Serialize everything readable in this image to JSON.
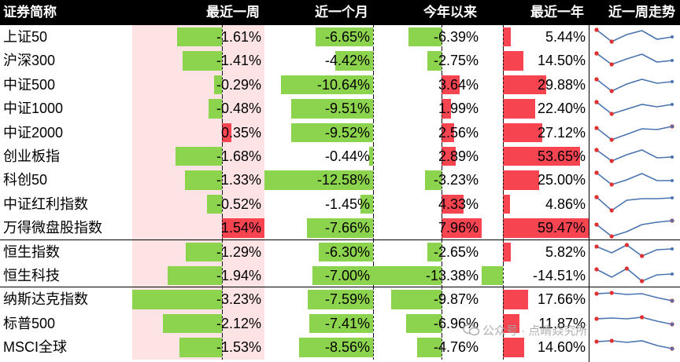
{
  "chart_data": {
    "type": "table",
    "title": "",
    "columns": [
      "证券简称",
      "最近一周",
      "近一个月",
      "今年以来",
      "最近一年",
      "近一周走势"
    ],
    "unit": "%",
    "colors": {
      "positive": "#f74451",
      "negative": "#8dd44e",
      "highlight": "#fde3e4",
      "line": "#4a74b0",
      "marker": "#e03030"
    },
    "rows": [
      {
        "name": "上证50",
        "week": "-1.61%",
        "month": "-6.65%",
        "ytd": "-6.39%",
        "year": "5.44%",
        "values": [
          -1.61,
          -6.65,
          -6.39,
          5.44
        ],
        "spark": [
          3.0,
          1.5,
          2.4,
          2.9,
          1.8,
          2.1
        ]
      },
      {
        "name": "沪深300",
        "week": "-1.41%",
        "month": "-4.42%",
        "ytd": "-2.75%",
        "year": "14.50%",
        "values": [
          -1.41,
          -4.42,
          -2.75,
          14.5
        ],
        "spark": [
          3.0,
          1.6,
          2.3,
          2.9,
          1.9,
          2.1
        ]
      },
      {
        "name": "中证500",
        "week": "-0.29%",
        "month": "-10.64%",
        "ytd": "3.64%",
        "year": "29.88%",
        "values": [
          -0.29,
          -10.64,
          3.64,
          29.88
        ],
        "spark": [
          2.8,
          1.3,
          2.2,
          2.8,
          2.3,
          2.5
        ]
      },
      {
        "name": "中证1000",
        "week": "-0.48%",
        "month": "-9.51%",
        "ytd": "1.99%",
        "year": "22.40%",
        "values": [
          -0.48,
          -9.51,
          1.99,
          22.4
        ],
        "spark": [
          2.9,
          1.4,
          2.0,
          2.6,
          2.3,
          2.6
        ]
      },
      {
        "name": "中证2000",
        "week": "0.35%",
        "month": "-9.52%",
        "ytd": "2.56%",
        "year": "27.12%",
        "values": [
          0.35,
          -9.52,
          2.56,
          27.12
        ],
        "spark": [
          2.7,
          1.2,
          1.9,
          2.6,
          2.5,
          2.9
        ]
      },
      {
        "name": "创业板指",
        "week": "-1.68%",
        "month": "-0.44%",
        "ytd": "2.89%",
        "year": "53.65%",
        "values": [
          -1.68,
          -0.44,
          2.89,
          53.65
        ],
        "spark": [
          2.9,
          1.5,
          2.3,
          2.9,
          1.9,
          2.0
        ]
      },
      {
        "name": "科创50",
        "week": "-1.33%",
        "month": "-12.58%",
        "ytd": "-3.23%",
        "year": "25.00%",
        "values": [
          -1.33,
          -12.58,
          -3.23,
          25.0
        ],
        "spark": [
          3.0,
          1.5,
          2.1,
          2.9,
          2.0,
          2.0
        ]
      },
      {
        "name": "中证红利指数",
        "week": "-0.52%",
        "month": "-1.45%",
        "ytd": "4.33%",
        "year": "4.86%",
        "values": [
          -0.52,
          -1.45,
          4.33,
          4.86
        ],
        "spark": [
          3.0,
          1.3,
          2.6,
          2.8,
          2.8,
          2.9
        ]
      },
      {
        "name": "万得微盘股指数",
        "week": "1.54%",
        "month": "-7.66%",
        "ytd": "7.96%",
        "year": "59.47%",
        "values": [
          1.54,
          -7.66,
          7.96,
          59.47
        ],
        "spark": [
          2.5,
          1.0,
          1.6,
          2.5,
          2.8,
          3.0
        ]
      },
      {
        "name": "恒生指数",
        "week": "-1.29%",
        "month": "-6.30%",
        "ytd": "-2.65%",
        "year": "5.82%",
        "values": [
          -1.29,
          -6.3,
          -2.65,
          5.82
        ],
        "spark": [
          2.8,
          2.0,
          3.0,
          1.6,
          2.4,
          2.5
        ]
      },
      {
        "name": "恒生科技",
        "week": "-1.94%",
        "month": "-7.00%",
        "ytd": "-13.38%",
        "year": "-14.51%",
        "values": [
          -1.94,
          -7.0,
          -13.38,
          -14.51
        ],
        "spark": [
          2.9,
          1.9,
          3.0,
          1.4,
          2.2,
          2.3
        ]
      },
      {
        "name": "纳斯达克指数",
        "week": "-3.23%",
        "month": "-7.59%",
        "ytd": "-9.87%",
        "year": "17.66%",
        "values": [
          -3.23,
          -7.59,
          -9.87,
          17.66
        ],
        "spark": [
          2.8,
          2.9,
          2.7,
          2.8,
          2.3,
          1.9
        ]
      },
      {
        "name": "标普500",
        "week": "-2.12%",
        "month": "-7.41%",
        "ytd": "-6.96%",
        "year": "11.87%",
        "values": [
          -2.12,
          -7.41,
          -6.96,
          11.87
        ],
        "spark": [
          2.7,
          2.8,
          2.7,
          2.9,
          2.4,
          2.0
        ]
      },
      {
        "name": "MSCI全球",
        "week": "-1.53%",
        "month": "-8.56%",
        "ytd": "-4.76%",
        "year": "14.60%",
        "values": [
          -1.53,
          -8.56,
          -4.76,
          14.6
        ],
        "spark": [
          2.8,
          2.9,
          2.7,
          2.9,
          2.3,
          1.9
        ]
      }
    ],
    "group_breaks_after": [
      8,
      10
    ]
  },
  "watermark": "公众号 · 点睛焱究所"
}
